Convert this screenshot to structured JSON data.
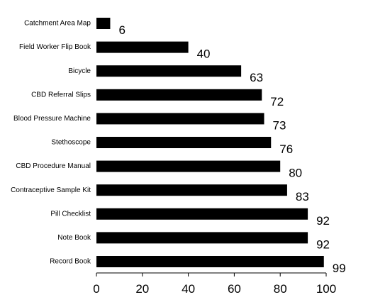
{
  "chart_data": {
    "type": "bar",
    "orientation": "horizontal",
    "categories": [
      "Catchment Area Map",
      "Field Worker Flip Book",
      "Bicycle",
      "CBD Referral Slips",
      "Blood Pressure Machine",
      "Stethoscope",
      "CBD Procedure Manual",
      "Contraceptive Sample Kit",
      "Pill Checklist",
      "Note Book",
      "Record Book"
    ],
    "values": [
      6,
      40,
      63,
      72,
      73,
      76,
      80,
      83,
      92,
      92,
      99
    ],
    "data_labels": [
      "6",
      "40",
      "63",
      "72",
      "73",
      "76",
      "80",
      "83",
      "92",
      "92",
      "99"
    ],
    "xlim": [
      0,
      100
    ],
    "xticks": [
      "0",
      "20",
      "40",
      "60",
      "80",
      "100"
    ],
    "title": "",
    "xlabel": "",
    "ylabel": "",
    "grid": false,
    "legend": "none",
    "bar_color": "#000000"
  }
}
